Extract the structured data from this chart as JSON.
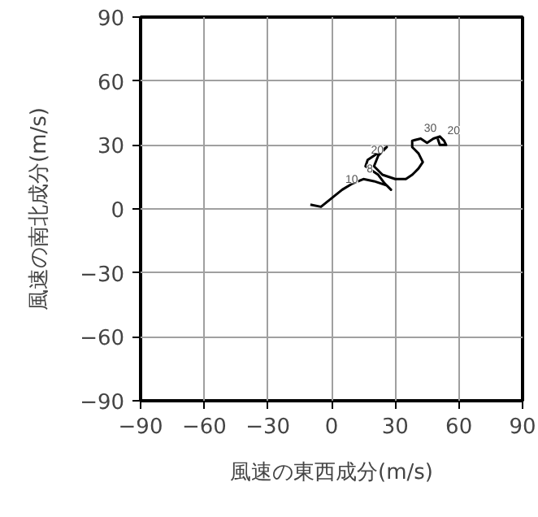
{
  "chart_data": {
    "type": "line",
    "xlabel": "風速の東西成分(m/s)",
    "ylabel": "風速の南北成分(m/s)",
    "xlim": [
      -90,
      90
    ],
    "ylim": [
      -90,
      90
    ],
    "xticks": [
      {
        "value": -90,
        "label": "−90"
      },
      {
        "value": -60,
        "label": "−60"
      },
      {
        "value": -30,
        "label": "−30"
      },
      0,
      30,
      60,
      90
    ],
    "yticks": [
      {
        "value": -90,
        "label": "−90"
      },
      {
        "value": -60,
        "label": "−60"
      },
      {
        "value": -30,
        "label": "−30"
      },
      0,
      30,
      60,
      90
    ],
    "grid": true,
    "series": [
      {
        "color": "#000000",
        "x": [
          -10,
          -5,
          0,
          5,
          10,
          15,
          20,
          26,
          28,
          25,
          22,
          16,
          17,
          20,
          26,
          22,
          20,
          24,
          30,
          35,
          38,
          41,
          43,
          41,
          38,
          38,
          42,
          45,
          48,
          51,
          53,
          54,
          51,
          50
        ],
        "values": [
          2,
          1,
          5,
          9,
          12,
          14,
          13,
          11,
          9,
          12,
          16,
          20,
          23,
          25,
          29,
          25,
          20,
          16,
          14,
          14,
          16,
          19,
          22,
          26,
          29,
          32,
          33,
          31,
          33,
          34,
          32,
          30,
          30,
          33
        ]
      }
    ],
    "annotations": [
      {
        "text": "10",
        "x": 5,
        "y": 9
      },
      {
        "text": "8",
        "x": 15,
        "y": 14
      },
      {
        "text": "20",
        "x": 17,
        "y": 23
      },
      {
        "text": "30",
        "x": 42,
        "y": 33
      },
      {
        "text": "20",
        "x": 53,
        "y": 32
      }
    ]
  }
}
